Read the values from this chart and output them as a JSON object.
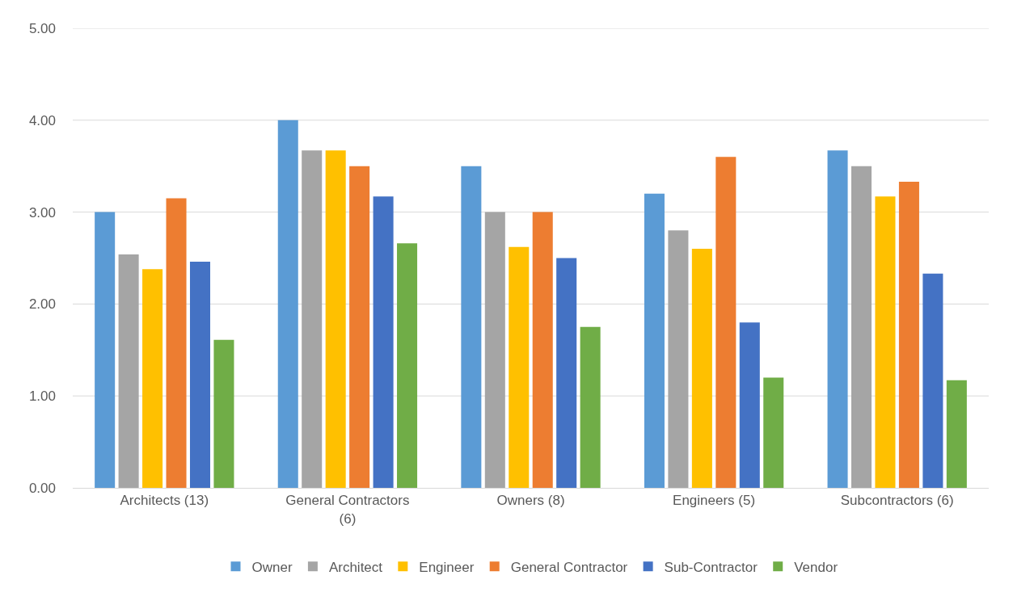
{
  "chart_data": {
    "type": "bar",
    "categories": [
      "Architects (13)",
      "General Contractors (6)",
      "Owners (8)",
      "Engineers (5)",
      "Subcontractors (6)"
    ],
    "series": [
      {
        "name": "Owner",
        "color": "#5b9bd5",
        "values": [
          3.0,
          4.0,
          3.5,
          3.2,
          3.67
        ]
      },
      {
        "name": "Architect",
        "color": "#a5a5a5",
        "values": [
          2.54,
          3.67,
          3.0,
          2.8,
          3.5
        ]
      },
      {
        "name": "Engineer",
        "color": "#ffc000",
        "values": [
          2.38,
          3.67,
          2.62,
          2.6,
          3.17
        ]
      },
      {
        "name": "General Contractor",
        "color": "#ed7d31",
        "values": [
          3.15,
          3.5,
          3.0,
          3.6,
          3.33
        ]
      },
      {
        "name": "Sub-Contractor",
        "color": "#4472c4",
        "values": [
          2.46,
          3.17,
          2.5,
          1.8,
          2.33
        ]
      },
      {
        "name": "Vendor",
        "color": "#70ad47",
        "values": [
          1.61,
          2.66,
          1.75,
          1.2,
          1.17
        ]
      }
    ],
    "ylim": [
      0,
      5
    ],
    "yticks": [
      {
        "value": 0,
        "label": "0.00"
      },
      {
        "value": 1,
        "label": "1.00"
      },
      {
        "value": 2,
        "label": "2.00"
      },
      {
        "value": 3,
        "label": "3.00"
      },
      {
        "value": 4,
        "label": "4.00"
      },
      {
        "value": 5,
        "label": "5.00"
      }
    ],
    "grid": "y",
    "legend": "bottom"
  }
}
